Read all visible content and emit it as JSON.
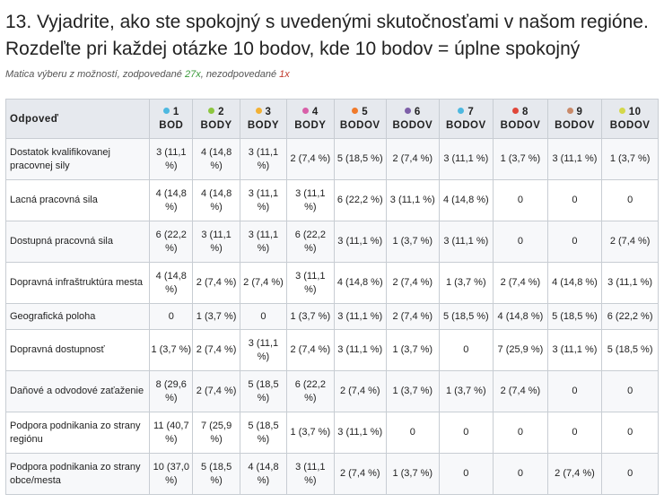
{
  "title": "13. Vyjadrite, ako ste spokojný s uvedenými skutočnosťami v našom regióne. Rozdeľte pri každej otázke 10 bodov, kde 10 bodov = úplne spokojný",
  "subtitle": {
    "prefix": "Matica výberu z možností, zodpovedané ",
    "answered": "27x",
    "middle": ", nezodpovedané ",
    "unanswered": "1x"
  },
  "table": {
    "header_label": "Odpoveď",
    "columns": [
      {
        "num": "1",
        "unit": "BOD",
        "color": "#4db8e0"
      },
      {
        "num": "2",
        "unit": "BODY",
        "color": "#8cc63f"
      },
      {
        "num": "3",
        "unit": "BODY",
        "color": "#f2b134"
      },
      {
        "num": "4",
        "unit": "BODY",
        "color": "#d85fa8"
      },
      {
        "num": "5",
        "unit": "BODOV",
        "color": "#f07a2b"
      },
      {
        "num": "6",
        "unit": "BODOV",
        "color": "#7d5fa8"
      },
      {
        "num": "7",
        "unit": "BODOV",
        "color": "#4db8e0"
      },
      {
        "num": "8",
        "unit": "BODOV",
        "color": "#e0473a"
      },
      {
        "num": "9",
        "unit": "BODOV",
        "color": "#c98a6a"
      },
      {
        "num": "10",
        "unit": "BODOV",
        "color": "#d4d84a"
      }
    ],
    "rows": [
      {
        "label": "Dostatok kvalifikovanej pracovnej sily",
        "cells": [
          "3 (11,1 %)",
          "4 (14,8 %)",
          "3 (11,1 %)",
          "2 (7,4 %)",
          "5 (18,5 %)",
          "2 (7,4 %)",
          "3 (11,1 %)",
          "1 (3,7 %)",
          "3 (11,1 %)",
          "1 (3,7 %)"
        ]
      },
      {
        "label": "Lacná pracovná sila",
        "cells": [
          "4 (14,8 %)",
          "4 (14,8 %)",
          "3 (11,1 %)",
          "3 (11,1 %)",
          "6 (22,2 %)",
          "3 (11,1 %)",
          "4 (14,8 %)",
          "0",
          "0",
          "0"
        ]
      },
      {
        "label": "Dostupná pracovná sila",
        "cells": [
          "6 (22,2 %)",
          "3 (11,1 %)",
          "3 (11,1 %)",
          "6 (22,2 %)",
          "3 (11,1 %)",
          "1 (3,7 %)",
          "3 (11,1 %)",
          "0",
          "0",
          "2 (7,4 %)"
        ]
      },
      {
        "label": "Dopravná infraštruktúra mesta",
        "cells": [
          "4 (14,8 %)",
          "2 (7,4 %)",
          "2 (7,4 %)",
          "3 (11,1 %)",
          "4 (14,8 %)",
          "2 (7,4 %)",
          "1 (3,7 %)",
          "2 (7,4 %)",
          "4 (14,8 %)",
          "3 (11,1 %)"
        ]
      },
      {
        "label": "Geografická poloha",
        "cells": [
          "0",
          "1 (3,7 %)",
          "0",
          "1 (3,7 %)",
          "3 (11,1 %)",
          "2 (7,4 %)",
          "5 (18,5 %)",
          "4 (14,8 %)",
          "5 (18,5 %)",
          "6 (22,2 %)"
        ]
      },
      {
        "label": "Dopravná dostupnosť",
        "cells": [
          "1 (3,7 %)",
          "2 (7,4 %)",
          "3 (11,1 %)",
          "2 (7,4 %)",
          "3 (11,1 %)",
          "1 (3,7 %)",
          "0",
          "7 (25,9 %)",
          "3 (11,1 %)",
          "5 (18,5 %)"
        ]
      },
      {
        "label": "Daňové a odvodové zaťaženie",
        "cells": [
          "8 (29,6 %)",
          "2 (7,4 %)",
          "5 (18,5 %)",
          "6 (22,2 %)",
          "2 (7,4 %)",
          "1 (3,7 %)",
          "1 (3,7 %)",
          "2 (7,4 %)",
          "0",
          "0"
        ]
      },
      {
        "label": "Podpora podnikania zo strany regiónu",
        "cells": [
          "11 (40,7 %)",
          "7 (25,9 %)",
          "5 (18,5 %)",
          "1 (3,7 %)",
          "3 (11,1 %)",
          "0",
          "0",
          "0",
          "0",
          "0"
        ]
      },
      {
        "label": "Podpora podnikania zo strany obce/mesta",
        "cells": [
          "10 (37,0 %)",
          "5 (18,5 %)",
          "4 (14,8 %)",
          "3 (11,1 %)",
          "2 (7,4 %)",
          "1 (3,7 %)",
          "0",
          "0",
          "2 (7,4 %)",
          "0"
        ]
      }
    ]
  }
}
